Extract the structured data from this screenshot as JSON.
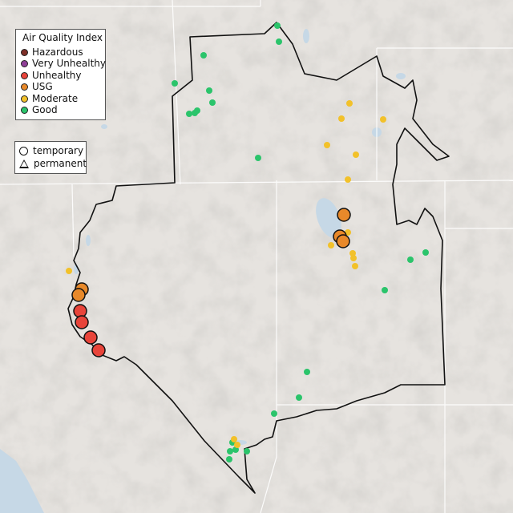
{
  "legend": {
    "title": "Air Quality Index",
    "categories": [
      {
        "label": "Hazardous",
        "color": "#7e2f27"
      },
      {
        "label": "Very Unhealthy",
        "color": "#8f3f97"
      },
      {
        "label": "Unhealthy",
        "color": "#e8443a"
      },
      {
        "label": "USG",
        "color": "#e8892a"
      },
      {
        "label": "Moderate",
        "color": "#f2c12a"
      },
      {
        "label": "Good",
        "color": "#2bc46b"
      }
    ],
    "types": [
      {
        "label": "temporary",
        "symbol": "circle"
      },
      {
        "label": "permanent",
        "symbol": "triangle"
      }
    ]
  },
  "colors": {
    "background": "#e6e3df",
    "water": "#c6d8e6",
    "boundary": "#111111",
    "border": "#ffffff"
  }
}
